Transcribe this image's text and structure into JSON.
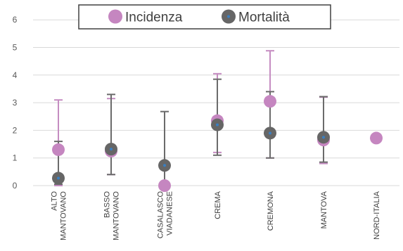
{
  "chart_data": {
    "type": "scatter",
    "categories": [
      [
        "ALTO",
        "MANTOVANO"
      ],
      [
        "BASSO",
        "MANTOVANO"
      ],
      [
        "CASALASCO",
        "VIADANESE"
      ],
      [
        "CREMA"
      ],
      [
        "CREMONA"
      ],
      [
        "MANTOVA"
      ],
      [
        "NORD-ITALIA"
      ]
    ],
    "ylim": [
      0,
      6
    ],
    "yticks": [
      0,
      1,
      2,
      3,
      4,
      5,
      6
    ],
    "grid": true,
    "legend_position": "top",
    "series": [
      {
        "name": "Incidenza",
        "color": "#c586c0",
        "values": [
          1.3,
          1.25,
          0.0,
          2.35,
          3.05,
          1.65,
          1.72
        ],
        "error_low": [
          0.0,
          0.4,
          null,
          1.2,
          1.0,
          0.8,
          null
        ],
        "error_high": [
          3.1,
          3.15,
          null,
          4.05,
          4.88,
          3.2,
          null
        ]
      },
      {
        "name": "Mortalità",
        "color": "#666666",
        "values": [
          0.27,
          1.32,
          0.73,
          2.2,
          1.9,
          1.75,
          null
        ],
        "error_low": [
          0.05,
          0.4,
          0.0,
          1.1,
          1.0,
          0.85,
          null
        ],
        "error_high": [
          1.6,
          3.3,
          2.68,
          3.85,
          3.4,
          3.22,
          null
        ]
      }
    ]
  }
}
